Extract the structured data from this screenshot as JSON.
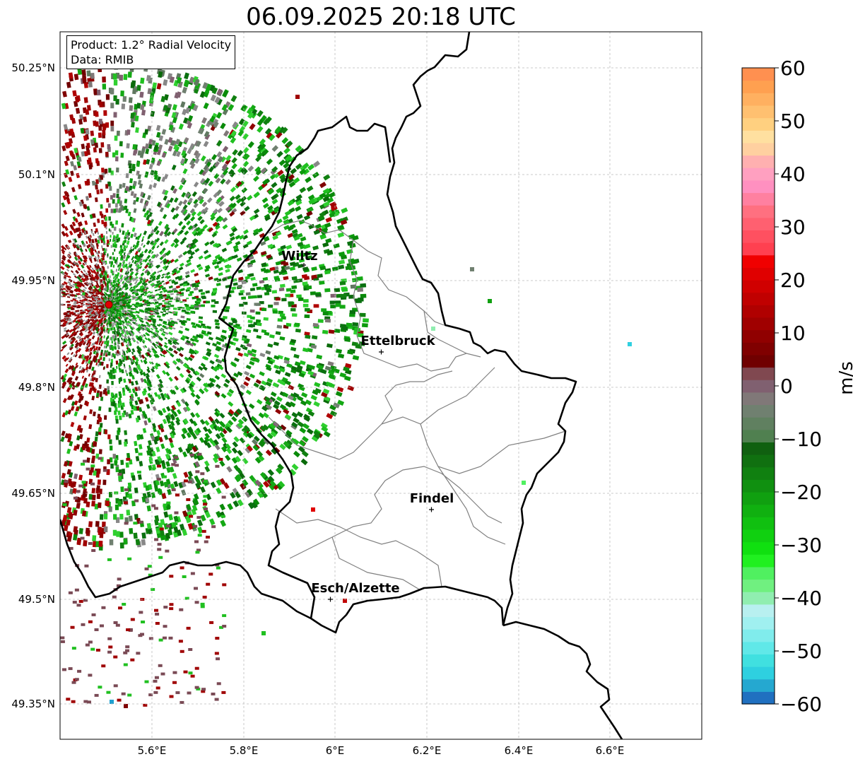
{
  "title": "06.09.2025 20:18 UTC",
  "info": {
    "product": "Product: 1.2° Radial Velocity",
    "data": "Data: RMIB"
  },
  "colorbar": {
    "unit": "m/s",
    "range": [
      -60,
      60
    ],
    "ticks": [
      "60",
      "50",
      "40",
      "30",
      "20",
      "10",
      "0",
      "−10",
      "−20",
      "−30",
      "−40",
      "−50",
      "−60"
    ],
    "colors": [
      "#2070c0",
      "#25a8d0",
      "#2ed0e0",
      "#40e0e0",
      "#60e8e8",
      "#80ecec",
      "#a0f0f0",
      "#b8f0f0",
      "#90eeb0",
      "#70f080",
      "#50f060",
      "#20f020",
      "#10e010",
      "#10d010",
      "#10c010",
      "#10b010",
      "#10a010",
      "#109010",
      "#108010",
      "#107010",
      "#106010",
      "#508050",
      "#608060",
      "#708070",
      "#807878",
      "#806070",
      "#804850",
      "#700000",
      "#800000",
      "#900000",
      "#a00000",
      "#b00000",
      "#c00000",
      "#d00000",
      "#e00000",
      "#f00000",
      "#ff4050",
      "#ff5060",
      "#ff6070",
      "#ff7080",
      "#ff80a0",
      "#ff90c0",
      "#ffa0c0",
      "#ffb0b0",
      "#ffd0a0",
      "#ffe0a0",
      "#ffd080",
      "#ffc070",
      "#ffb060",
      "#ffa050",
      "#ff9050"
    ]
  },
  "axes": {
    "lat_ticks": [
      "50.25°N",
      "50.1°N",
      "49.95°N",
      "49.8°N",
      "49.65°N",
      "49.5°N",
      "49.35°N"
    ],
    "lon_ticks": [
      "5.6°E",
      "5.8°E",
      "6°E",
      "6.2°E",
      "6.4°E",
      "6.6°E"
    ]
  },
  "cities": [
    {
      "name": "Wiltz"
    },
    {
      "name": "Ettelbruck"
    },
    {
      "name": "Findel"
    },
    {
      "name": "Esch/Alzette"
    }
  ],
  "radar_site": "radar-location-marker"
}
